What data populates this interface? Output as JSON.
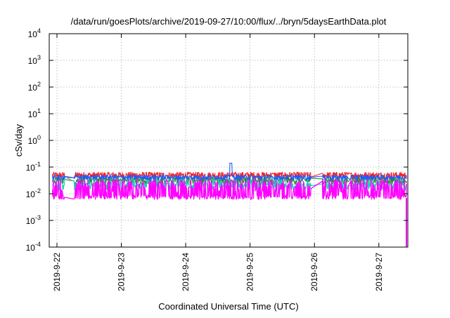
{
  "chart_data": {
    "type": "line",
    "title": "/data/run/goesPlots/archive/2019-09-27/10:00/flux/../bryn/5daysEarthData.plot",
    "xlabel": "Coordinated Universal Time (UTC)",
    "ylabel": "cSv/day",
    "y_scale": "log",
    "ylim": [
      0.0001,
      10000
    ],
    "xlim": [
      -0.12,
      5.45
    ],
    "grid": true,
    "legend": "none",
    "y_ticks": [
      {
        "base": "10",
        "exp": "4",
        "value": 10000
      },
      {
        "base": "10",
        "exp": "3",
        "value": 1000
      },
      {
        "base": "10",
        "exp": "2",
        "value": 100
      },
      {
        "base": "10",
        "exp": "1",
        "value": 10
      },
      {
        "base": "10",
        "exp": "0",
        "value": 1
      },
      {
        "base": "10",
        "exp": "-1",
        "value": 0.1
      },
      {
        "base": "10",
        "exp": "-2",
        "value": 0.01
      },
      {
        "base": "10",
        "exp": "-3",
        "value": 0.001
      },
      {
        "base": "10",
        "exp": "-4",
        "value": 0.0001
      }
    ],
    "x_ticks": [
      {
        "label": "2019-9-22",
        "value": 0
      },
      {
        "label": "2019-9-23",
        "value": 1
      },
      {
        "label": "2019-9-24",
        "value": 2
      },
      {
        "label": "2019-9-25",
        "value": 3
      },
      {
        "label": "2019-9-26",
        "value": 4
      },
      {
        "label": "2019-9-27",
        "value": 5
      }
    ],
    "series": [
      {
        "color": "#ff2020",
        "baseline": 0.05,
        "spread": 0.3
      },
      {
        "color": "#2a8a3a",
        "baseline": 0.032,
        "spread": 0.3
      },
      {
        "color": "#22ccbb",
        "baseline": 0.02,
        "spread": 0.32
      },
      {
        "color": "#1e5aff",
        "baseline": 0.042,
        "spread": 0.22
      },
      {
        "color": "#ff00ff",
        "baseline": 0.0075,
        "spread": 0.18
      }
    ]
  }
}
